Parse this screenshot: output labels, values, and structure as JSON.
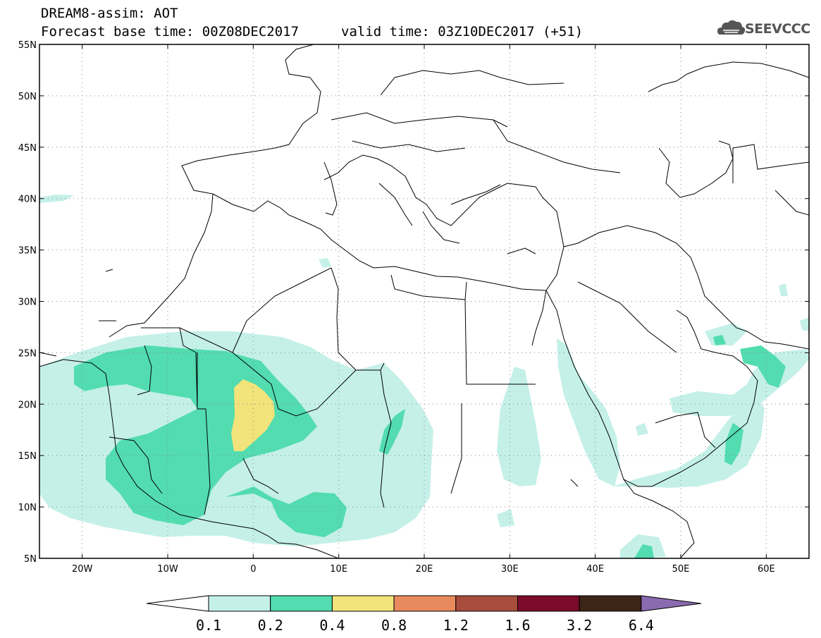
{
  "title": {
    "line1": "DREAM8-assim: AOT",
    "line2": "Forecast base time: 00Z08DEC2017",
    "valid": "valid time: 03Z10DEC2017 (+51)"
  },
  "logo": {
    "text": "SEEVCCC",
    "icon": "cloud-icon"
  },
  "map": {
    "lon_range": [
      -25,
      65
    ],
    "lat_range": [
      5,
      55
    ],
    "lat_ticks": [
      {
        "value": 55,
        "label": "55N"
      },
      {
        "value": 50,
        "label": "50N"
      },
      {
        "value": 45,
        "label": "45N"
      },
      {
        "value": 40,
        "label": "40N"
      },
      {
        "value": 35,
        "label": "35N"
      },
      {
        "value": 30,
        "label": "30N"
      },
      {
        "value": 25,
        "label": "25N"
      },
      {
        "value": 20,
        "label": "20N"
      },
      {
        "value": 15,
        "label": "15N"
      },
      {
        "value": 10,
        "label": "10N"
      },
      {
        "value": 5,
        "label": "5N"
      }
    ],
    "lon_ticks": [
      {
        "value": -20,
        "label": "20W"
      },
      {
        "value": -10,
        "label": "10W"
      },
      {
        "value": 0,
        "label": "0"
      },
      {
        "value": 10,
        "label": "10E"
      },
      {
        "value": 20,
        "label": "20E"
      },
      {
        "value": 30,
        "label": "30E"
      },
      {
        "value": 40,
        "label": "40E"
      },
      {
        "value": 50,
        "label": "50E"
      },
      {
        "value": 60,
        "label": "60E"
      }
    ],
    "grid": "dotted"
  },
  "colorbar": {
    "labels": [
      "0.1",
      "0.2",
      "0.4",
      "0.8",
      "1.2",
      "1.6",
      "3.2",
      "6.4"
    ],
    "colors": [
      "#c4f0e8",
      "#52dcb0",
      "#f2e37a",
      "#e88a5e",
      "#a84c3e",
      "#7a0c2a",
      "#3c2416",
      "#8a6ab0"
    ]
  }
}
